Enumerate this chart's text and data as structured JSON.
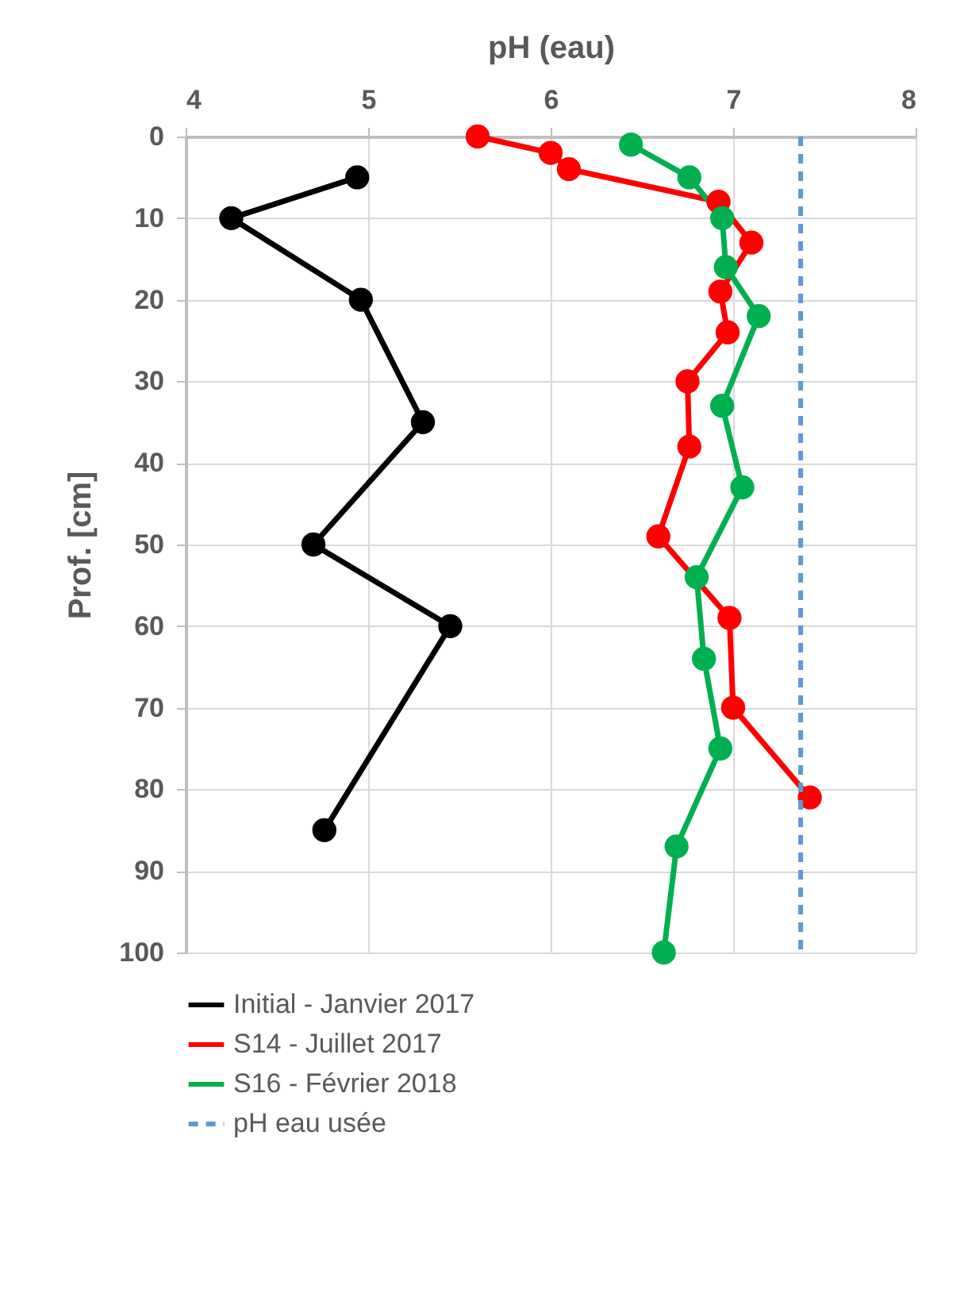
{
  "chart_data": {
    "type": "line",
    "xlabel": "pH (eau)",
    "ylabel": "Prof. [cm]",
    "xlim": [
      4,
      8
    ],
    "xticks": [
      4,
      5,
      6,
      7,
      8
    ],
    "ylim": [
      100,
      0
    ],
    "yticks": [
      0,
      10,
      20,
      30,
      40,
      50,
      60,
      70,
      80,
      90,
      100
    ],
    "grid": true,
    "legend": "bottom",
    "marker": "circle",
    "line_style": "solid",
    "series": [
      {
        "name": "Initial - Janvier 2017",
        "color": "#000000",
        "x": [
          4.94,
          4.25,
          4.96,
          5.3,
          4.7,
          5.45,
          4.76
        ],
        "values": [
          5,
          10,
          20,
          35,
          50,
          60,
          85
        ]
      },
      {
        "name": "S14 - Juillet 2017",
        "color": "#ff0000",
        "x": [
          5.6,
          6.0,
          6.1,
          6.92,
          7.1,
          6.93,
          6.97,
          6.75,
          6.76,
          6.59,
          6.98,
          7.0,
          7.42
        ],
        "values": [
          0,
          2,
          4,
          8,
          13,
          19,
          24,
          30,
          38,
          49,
          59,
          70,
          81
        ]
      },
      {
        "name": "S16 - Février 2018",
        "color": "#00b050",
        "x": [
          6.44,
          6.76,
          6.94,
          6.96,
          7.14,
          6.94,
          7.05,
          6.8,
          6.84,
          6.93,
          6.69,
          6.62
        ],
        "values": [
          1,
          5,
          10,
          16,
          22,
          33,
          43,
          54,
          64,
          75,
          87,
          100
        ]
      }
    ],
    "ref_lines": [
      {
        "axis": "x",
        "value": 7.37,
        "label": "pH eau usée",
        "color": "#5b9bd5",
        "line_style": "dashed"
      }
    ]
  }
}
